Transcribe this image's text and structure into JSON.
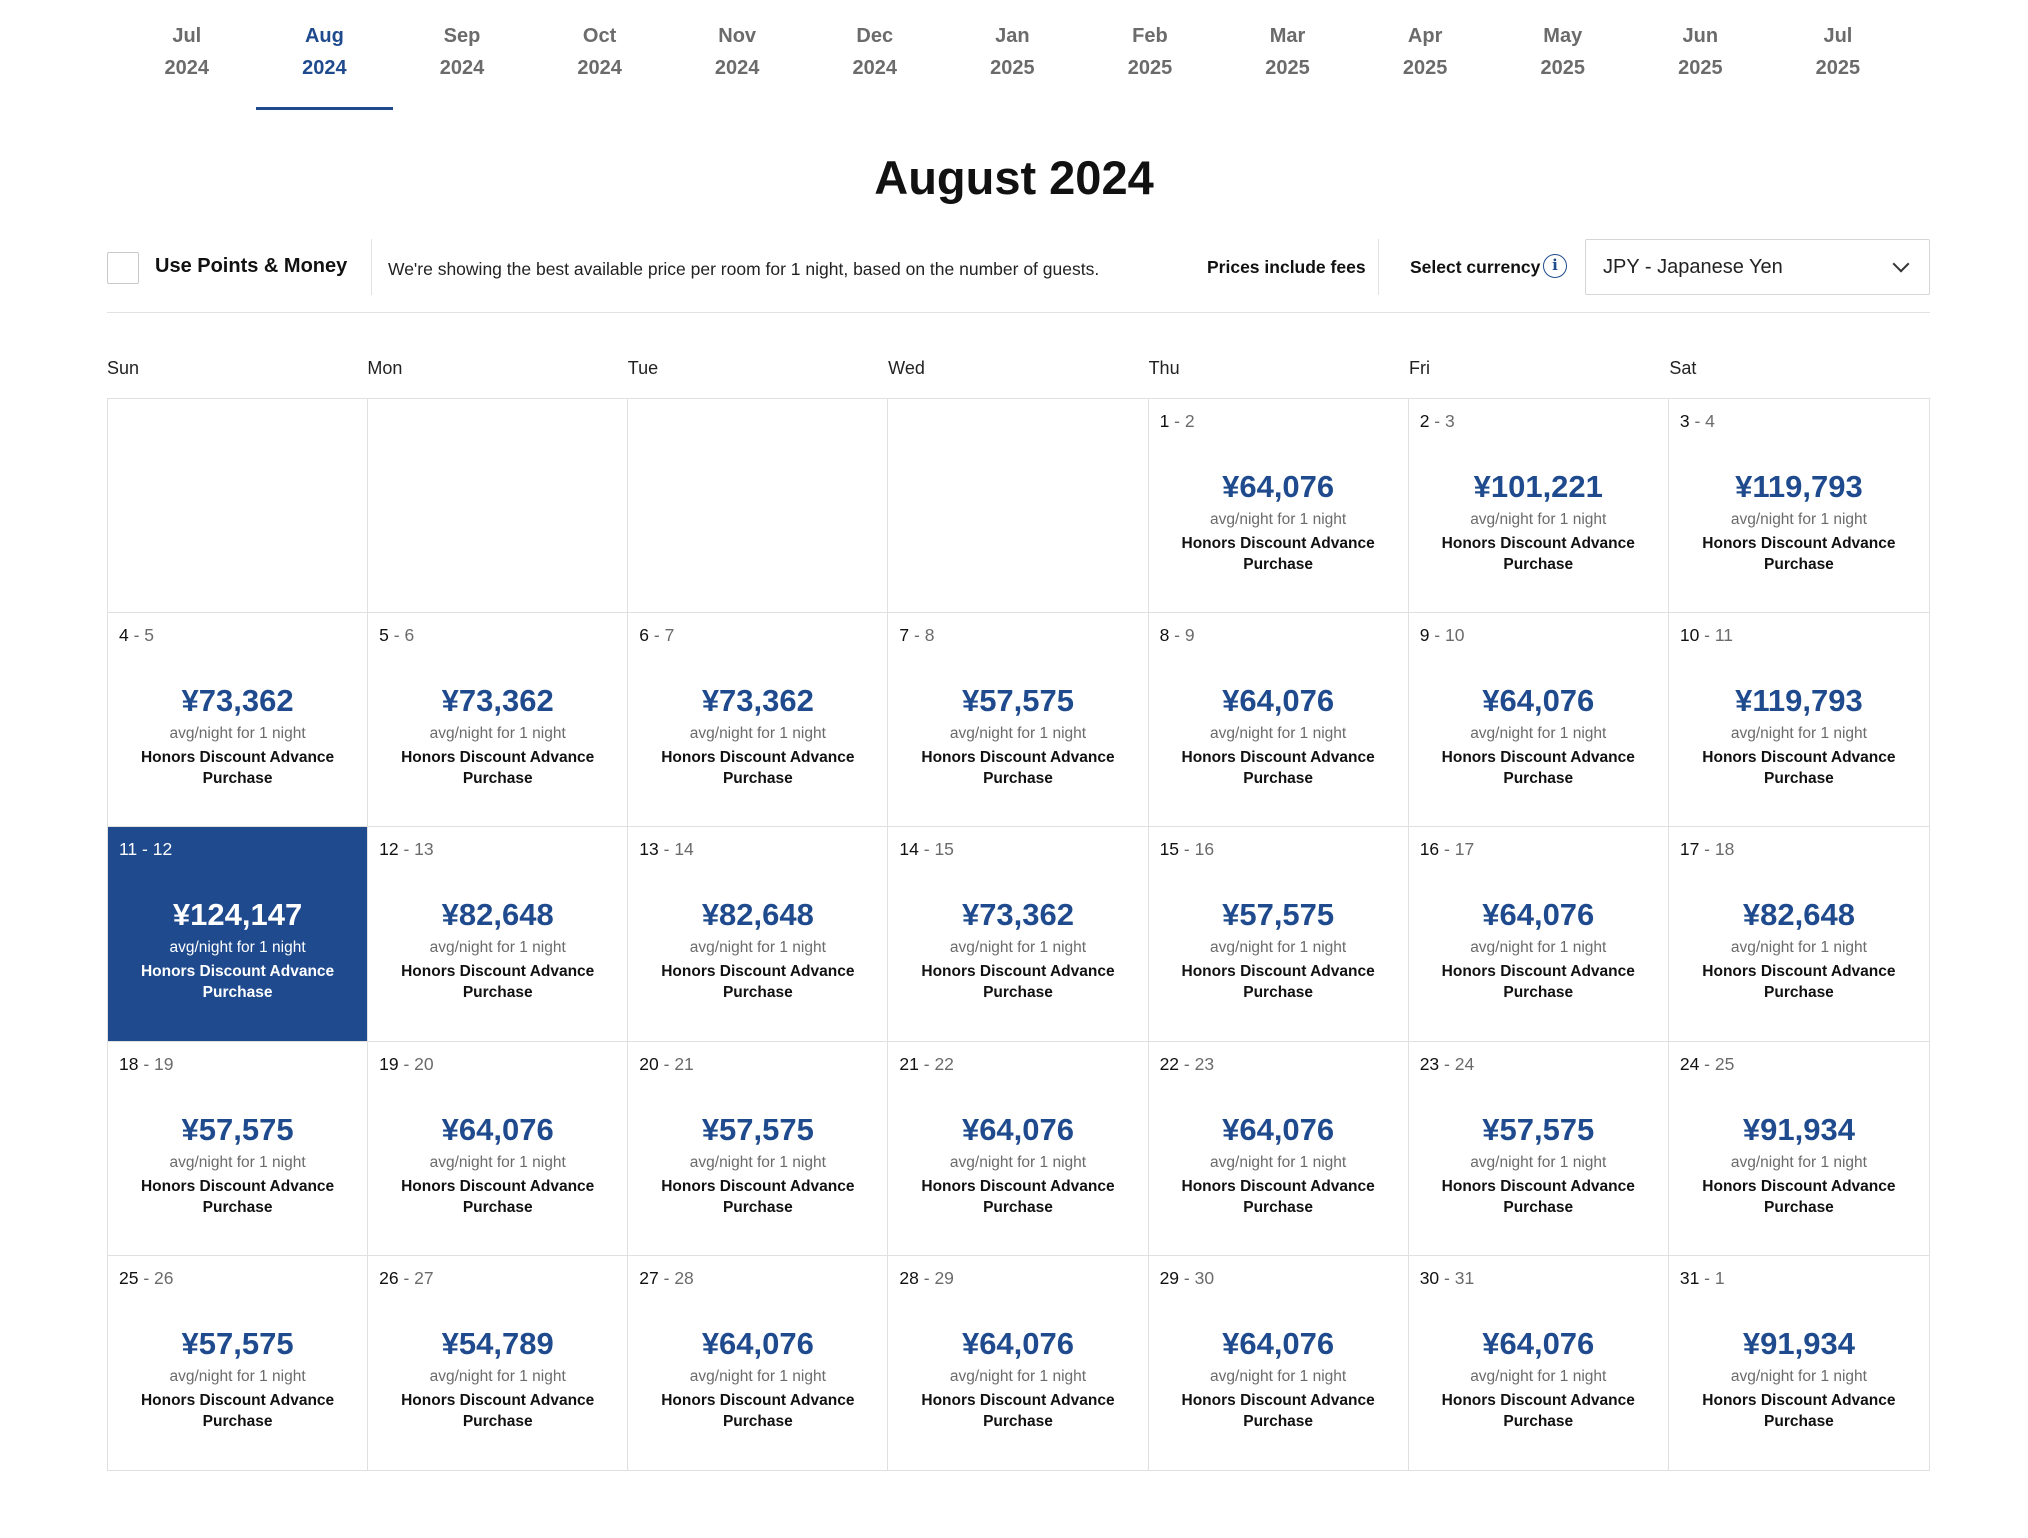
{
  "month_tabs": [
    {
      "month": "Jul",
      "year": "2024"
    },
    {
      "month": "Aug",
      "year": "2024"
    },
    {
      "month": "Sep",
      "year": "2024"
    },
    {
      "month": "Oct",
      "year": "2024"
    },
    {
      "month": "Nov",
      "year": "2024"
    },
    {
      "month": "Dec",
      "year": "2024"
    },
    {
      "month": "Jan",
      "year": "2025"
    },
    {
      "month": "Feb",
      "year": "2025"
    },
    {
      "month": "Mar",
      "year": "2025"
    },
    {
      "month": "Apr",
      "year": "2025"
    },
    {
      "month": "May",
      "year": "2025"
    },
    {
      "month": "Jun",
      "year": "2025"
    },
    {
      "month": "Jul",
      "year": "2025"
    }
  ],
  "active_month_index": 1,
  "page_title": "August 2024",
  "toolbar": {
    "points_label": "Use Points & Money",
    "info_text": "We're showing the best available price per room for 1 night, based on the number of guests.",
    "fees_text": "Prices include fees",
    "currency_label": "Select currency",
    "currency_value": "JPY - Japanese Yen",
    "info_icon": "i"
  },
  "weekdays": [
    "Sun",
    "Mon",
    "Tue",
    "Wed",
    "Thu",
    "Fri",
    "Sat"
  ],
  "avg_label": "avg/night for 1 night",
  "rate_label": "Honors Discount Advance Purchase",
  "selected_day": "11",
  "days": [
    {
      "d1": "",
      "d2": "",
      "price": ""
    },
    {
      "d1": "",
      "d2": "",
      "price": ""
    },
    {
      "d1": "",
      "d2": "",
      "price": ""
    },
    {
      "d1": "",
      "d2": "",
      "price": ""
    },
    {
      "d1": "1",
      "d2": "2",
      "price": "¥64,076"
    },
    {
      "d1": "2",
      "d2": "3",
      "price": "¥101,221"
    },
    {
      "d1": "3",
      "d2": "4",
      "price": "¥119,793"
    },
    {
      "d1": "4",
      "d2": "5",
      "price": "¥73,362"
    },
    {
      "d1": "5",
      "d2": "6",
      "price": "¥73,362"
    },
    {
      "d1": "6",
      "d2": "7",
      "price": "¥73,362"
    },
    {
      "d1": "7",
      "d2": "8",
      "price": "¥57,575"
    },
    {
      "d1": "8",
      "d2": "9",
      "price": "¥64,076"
    },
    {
      "d1": "9",
      "d2": "10",
      "price": "¥64,076"
    },
    {
      "d1": "10",
      "d2": "11",
      "price": "¥119,793"
    },
    {
      "d1": "11",
      "d2": "12",
      "price": "¥124,147"
    },
    {
      "d1": "12",
      "d2": "13",
      "price": "¥82,648"
    },
    {
      "d1": "13",
      "d2": "14",
      "price": "¥82,648"
    },
    {
      "d1": "14",
      "d2": "15",
      "price": "¥73,362"
    },
    {
      "d1": "15",
      "d2": "16",
      "price": "¥57,575"
    },
    {
      "d1": "16",
      "d2": "17",
      "price": "¥64,076"
    },
    {
      "d1": "17",
      "d2": "18",
      "price": "¥82,648"
    },
    {
      "d1": "18",
      "d2": "19",
      "price": "¥57,575"
    },
    {
      "d1": "19",
      "d2": "20",
      "price": "¥64,076"
    },
    {
      "d1": "20",
      "d2": "21",
      "price": "¥57,575"
    },
    {
      "d1": "21",
      "d2": "22",
      "price": "¥64,076"
    },
    {
      "d1": "22",
      "d2": "23",
      "price": "¥64,076"
    },
    {
      "d1": "23",
      "d2": "24",
      "price": "¥57,575"
    },
    {
      "d1": "24",
      "d2": "25",
      "price": "¥91,934"
    },
    {
      "d1": "25",
      "d2": "26",
      "price": "¥57,575"
    },
    {
      "d1": "26",
      "d2": "27",
      "price": "¥54,789"
    },
    {
      "d1": "27",
      "d2": "28",
      "price": "¥64,076"
    },
    {
      "d1": "28",
      "d2": "29",
      "price": "¥64,076"
    },
    {
      "d1": "29",
      "d2": "30",
      "price": "¥64,076"
    },
    {
      "d1": "30",
      "d2": "31",
      "price": "¥64,076"
    },
    {
      "d1": "31",
      "d2": "1",
      "price": "¥91,934"
    }
  ]
}
